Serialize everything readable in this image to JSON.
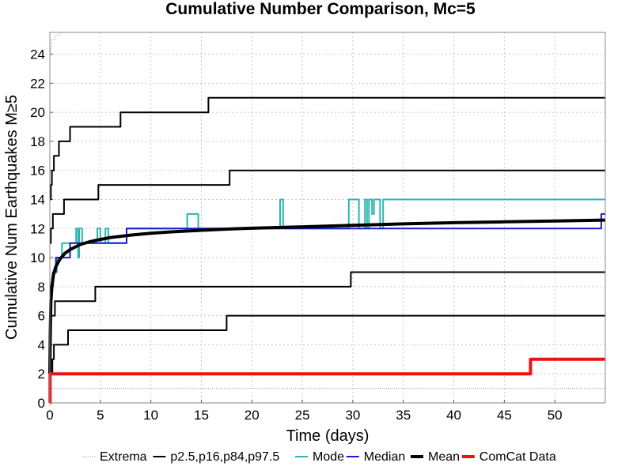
{
  "chart_data": {
    "type": "line",
    "title": "Cumulative Number Comparison, Mc=5",
    "xlabel": "Time (days)",
    "ylabel": "Cumulative Num Earthquakes M≥5",
    "xlim": [
      0,
      55
    ],
    "ylim": [
      0,
      25.5
    ],
    "x_ticks": [
      0,
      5,
      10,
      15,
      20,
      25,
      30,
      35,
      40,
      45,
      50
    ],
    "y_ticks": [
      0,
      2,
      4,
      6,
      8,
      10,
      12,
      14,
      16,
      18,
      20,
      22,
      24
    ],
    "grid": true,
    "legend_position": "bottom",
    "series": [
      {
        "name": "Extrema",
        "color": "#999999",
        "style": "dotted",
        "lines": [
          [
            [
              0,
              24
            ],
            [
              0.1,
              24
            ],
            [
              0.1,
              24.5
            ],
            [
              0.2,
              24.5
            ],
            [
              0.2,
              25
            ],
            [
              0.5,
              25
            ],
            [
              0.5,
              25.3
            ],
            [
              1,
              25.3
            ],
            [
              1,
              25.5
            ]
          ],
          [
            [
              0,
              1
            ],
            [
              55,
              1
            ]
          ]
        ]
      },
      {
        "name": "p2.5,p16,p84,p97.5",
        "color": "#000000",
        "style": "solid",
        "lines": [
          [
            [
              0,
              14
            ],
            [
              0.1,
              14
            ],
            [
              0.1,
              15
            ],
            [
              0.2,
              15
            ],
            [
              0.2,
              16
            ],
            [
              0.4,
              16
            ],
            [
              0.4,
              17
            ],
            [
              0.9,
              17
            ],
            [
              0.9,
              18
            ],
            [
              2,
              18
            ],
            [
              2,
              19
            ],
            [
              7,
              19
            ],
            [
              7,
              20
            ],
            [
              15.7,
              20
            ],
            [
              15.7,
              21
            ],
            [
              55,
              21
            ]
          ],
          [
            [
              0,
              11
            ],
            [
              0.1,
              11
            ],
            [
              0.1,
              12
            ],
            [
              0.3,
              12
            ],
            [
              0.3,
              13
            ],
            [
              1.4,
              13
            ],
            [
              1.4,
              14
            ],
            [
              4.8,
              14
            ],
            [
              4.8,
              15
            ],
            [
              17.8,
              15
            ],
            [
              17.8,
              16
            ],
            [
              55,
              16
            ]
          ],
          [
            [
              0,
              5
            ],
            [
              0.1,
              5
            ],
            [
              0.1,
              6
            ],
            [
              0.5,
              6
            ],
            [
              0.5,
              7
            ],
            [
              4.5,
              7
            ],
            [
              4.5,
              8
            ],
            [
              29.8,
              8
            ],
            [
              29.8,
              9
            ],
            [
              55,
              9
            ]
          ],
          [
            [
              0,
              2
            ],
            [
              0.25,
              2
            ],
            [
              0.25,
              3
            ],
            [
              0.4,
              3
            ],
            [
              0.4,
              4
            ],
            [
              1.8,
              4
            ],
            [
              1.8,
              5
            ],
            [
              17.5,
              5
            ],
            [
              17.5,
              6
            ],
            [
              55,
              6
            ]
          ]
        ]
      },
      {
        "name": "Mode",
        "color": "#2cb5b0",
        "style": "solid",
        "lines": [
          [
            [
              0,
              8
            ],
            [
              0.3,
              8
            ],
            [
              0.3,
              9
            ],
            [
              0.7,
              9
            ],
            [
              0.7,
              10
            ],
            [
              1.2,
              10
            ],
            [
              1.2,
              11
            ],
            [
              2.6,
              11
            ],
            [
              2.6,
              12
            ],
            [
              2.8,
              12
            ],
            [
              2.8,
              10
            ],
            [
              2.9,
              10
            ],
            [
              2.9,
              12
            ],
            [
              3.2,
              12
            ],
            [
              3.2,
              11
            ],
            [
              4.7,
              11
            ],
            [
              4.7,
              12
            ],
            [
              5,
              12
            ],
            [
              5,
              11
            ],
            [
              5.5,
              11
            ],
            [
              5.5,
              12
            ],
            [
              5.8,
              12
            ],
            [
              5.8,
              11
            ],
            [
              7.6,
              11
            ],
            [
              7.6,
              12
            ],
            [
              13.6,
              12
            ],
            [
              13.6,
              13
            ],
            [
              14.7,
              13
            ],
            [
              14.7,
              12
            ],
            [
              22.8,
              12
            ],
            [
              22.8,
              14
            ],
            [
              23.1,
              14
            ],
            [
              23.1,
              12
            ],
            [
              29.6,
              12
            ],
            [
              29.6,
              14
            ],
            [
              30.6,
              14
            ],
            [
              30.6,
              12
            ],
            [
              31.2,
              12
            ],
            [
              31.2,
              14
            ],
            [
              31.4,
              14
            ],
            [
              31.4,
              12
            ],
            [
              31.6,
              12
            ],
            [
              31.6,
              14
            ],
            [
              31.9,
              14
            ],
            [
              31.9,
              13
            ],
            [
              32.1,
              13
            ],
            [
              32.1,
              14
            ],
            [
              32.7,
              14
            ],
            [
              32.7,
              12
            ],
            [
              33,
              12
            ],
            [
              33,
              14
            ],
            [
              55,
              14
            ]
          ]
        ]
      },
      {
        "name": "Median",
        "color": "#1a1ad6",
        "style": "solid",
        "lines": [
          [
            [
              0,
              8
            ],
            [
              0.3,
              8
            ],
            [
              0.3,
              9
            ],
            [
              0.6,
              9
            ],
            [
              0.6,
              10
            ],
            [
              2,
              10
            ],
            [
              2,
              11
            ],
            [
              7.6,
              11
            ],
            [
              7.6,
              12
            ],
            [
              54.6,
              12
            ],
            [
              54.6,
              13
            ],
            [
              55,
              13
            ]
          ]
        ]
      },
      {
        "name": "Mean",
        "color": "#000000",
        "style": "thick",
        "lines": [
          [
            [
              0,
              2
            ],
            [
              0.05,
              5
            ],
            [
              0.1,
              7
            ],
            [
              0.2,
              8
            ],
            [
              0.35,
              8.8
            ],
            [
              0.6,
              9.4
            ],
            [
              1,
              9.9
            ],
            [
              1.5,
              10.3
            ],
            [
              2,
              10.55
            ],
            [
              3,
              10.9
            ],
            [
              4,
              11.1
            ],
            [
              5,
              11.25
            ],
            [
              6,
              11.38
            ],
            [
              8,
              11.55
            ],
            [
              10,
              11.68
            ],
            [
              12,
              11.77
            ],
            [
              15,
              11.88
            ],
            [
              18,
              11.97
            ],
            [
              20,
              12.02
            ],
            [
              25,
              12.12
            ],
            [
              30,
              12.22
            ],
            [
              35,
              12.32
            ],
            [
              40,
              12.4
            ],
            [
              45,
              12.46
            ],
            [
              50,
              12.52
            ],
            [
              55,
              12.58
            ]
          ]
        ]
      },
      {
        "name": "ComCat Data",
        "color": "#f01010",
        "style": "thick",
        "lines": [
          [
            [
              0,
              0
            ],
            [
              0.02,
              0
            ],
            [
              0.02,
              2
            ],
            [
              47.6,
              2
            ],
            [
              47.6,
              3
            ],
            [
              55,
              3
            ]
          ]
        ]
      }
    ]
  }
}
